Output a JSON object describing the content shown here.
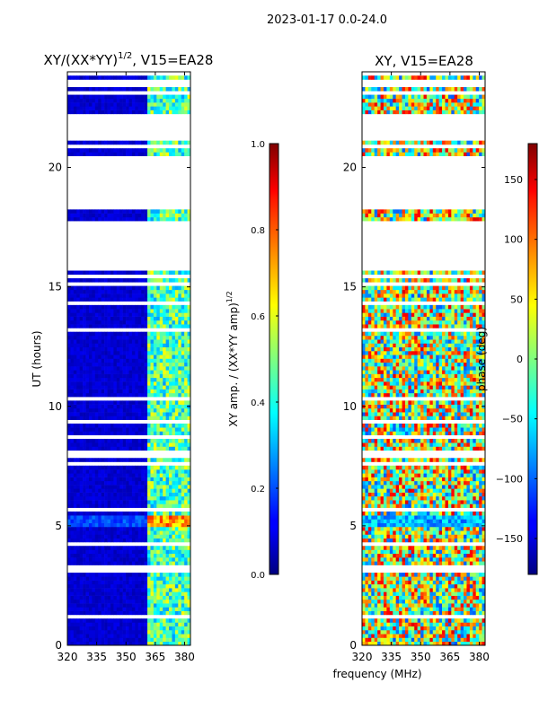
{
  "figure": {
    "suptitle": "2023-01-17 0.0-24.0",
    "shared_xlabel": "frequency (MHz)"
  },
  "chart_data": [
    {
      "type": "heatmap",
      "title_text": "XY/(XX*YY)",
      "title_exponent": "1/2",
      "title_suffix": ", V15=EA28",
      "ylabel": "UT (hours)",
      "x_ticks": [
        320,
        335,
        350,
        365,
        380
      ],
      "x_tick_labels": [
        "320",
        "335",
        "350",
        "365",
        "380"
      ],
      "xlim": [
        320,
        383
      ],
      "y_ticks": [
        0,
        5,
        10,
        15,
        20
      ],
      "y_tick_labels": [
        "0",
        "5",
        "10",
        "15",
        "20"
      ],
      "ylim": [
        0,
        24
      ],
      "colorscale": "jet",
      "colorbar": {
        "label_text": "XY amp. / (XX*YY amp)",
        "label_exponent": "1/2",
        "range": [
          0.0,
          1.0
        ],
        "ticks": [
          0.0,
          0.2,
          0.4,
          0.6,
          0.8,
          1.0
        ],
        "tick_labels": [
          "0.0",
          "0.2",
          "0.4",
          "0.6",
          "0.8",
          "1.0"
        ]
      },
      "data_gaps_hours": [
        [
          1.1,
          1.3
        ],
        [
          2.05,
          2.15
        ],
        [
          3.1,
          3.3
        ],
        [
          4.1,
          4.3
        ],
        [
          5.55,
          5.75
        ],
        [
          6.05,
          6.15
        ],
        [
          7.5,
          7.7
        ],
        [
          7.9,
          8.1
        ],
        [
          8.65,
          8.8
        ],
        [
          9.35,
          9.45
        ],
        [
          10.2,
          10.35
        ],
        [
          11.95,
          12.05
        ],
        [
          13.2,
          13.35
        ],
        [
          14.3,
          14.45
        ],
        [
          15.05,
          15.25
        ],
        [
          15.4,
          15.45
        ],
        [
          15.55,
          15.6
        ],
        [
          15.7,
          17.8
        ],
        [
          18.3,
          20.5
        ],
        [
          20.8,
          20.95
        ],
        [
          21.2,
          22.2
        ],
        [
          22.65,
          22.8
        ],
        [
          23.05,
          23.15
        ],
        [
          23.35,
          23.45
        ],
        [
          23.55,
          23.62
        ],
        [
          23.8,
          24.0
        ]
      ],
      "high_band_mhz": [
        361,
        383
      ],
      "typical_value_low_band": 0.05,
      "typical_value_high_band": 0.45
    },
    {
      "type": "heatmap",
      "title": "XY, V15=EA28",
      "x_ticks": [
        320,
        335,
        350,
        365,
        380
      ],
      "x_tick_labels": [
        "320",
        "335",
        "350",
        "365",
        "380"
      ],
      "xlim": [
        320,
        383
      ],
      "y_ticks": [
        0,
        5,
        10,
        15,
        20
      ],
      "y_tick_labels": [
        "0",
        "5",
        "10",
        "15",
        "20"
      ],
      "ylim": [
        0,
        24
      ],
      "colorscale": "jet",
      "colorbar": {
        "label": "phase (deg)",
        "range": [
          -180,
          180
        ],
        "ticks": [
          -150,
          -100,
          -50,
          0,
          50,
          100,
          150
        ],
        "tick_labels": [
          "−150",
          "−100",
          "−50",
          "0",
          "50",
          "100",
          "150"
        ]
      },
      "data_gaps_hours": [
        [
          1.1,
          1.3
        ],
        [
          2.05,
          2.15
        ],
        [
          3.1,
          3.3
        ],
        [
          4.1,
          4.3
        ],
        [
          5.55,
          5.75
        ],
        [
          6.05,
          6.15
        ],
        [
          7.5,
          7.7
        ],
        [
          7.9,
          8.1
        ],
        [
          8.65,
          8.8
        ],
        [
          9.35,
          9.45
        ],
        [
          10.2,
          10.35
        ],
        [
          11.95,
          12.05
        ],
        [
          13.2,
          13.35
        ],
        [
          14.3,
          14.45
        ],
        [
          15.05,
          15.25
        ],
        [
          15.4,
          15.45
        ],
        [
          15.55,
          15.6
        ],
        [
          15.7,
          17.8
        ],
        [
          18.3,
          20.5
        ],
        [
          20.8,
          20.95
        ],
        [
          21.2,
          22.2
        ],
        [
          22.65,
          22.8
        ],
        [
          23.05,
          23.15
        ],
        [
          23.35,
          23.45
        ],
        [
          23.55,
          23.62
        ],
        [
          23.8,
          24.0
        ]
      ],
      "typical_phase_deg": 20
    }
  ]
}
